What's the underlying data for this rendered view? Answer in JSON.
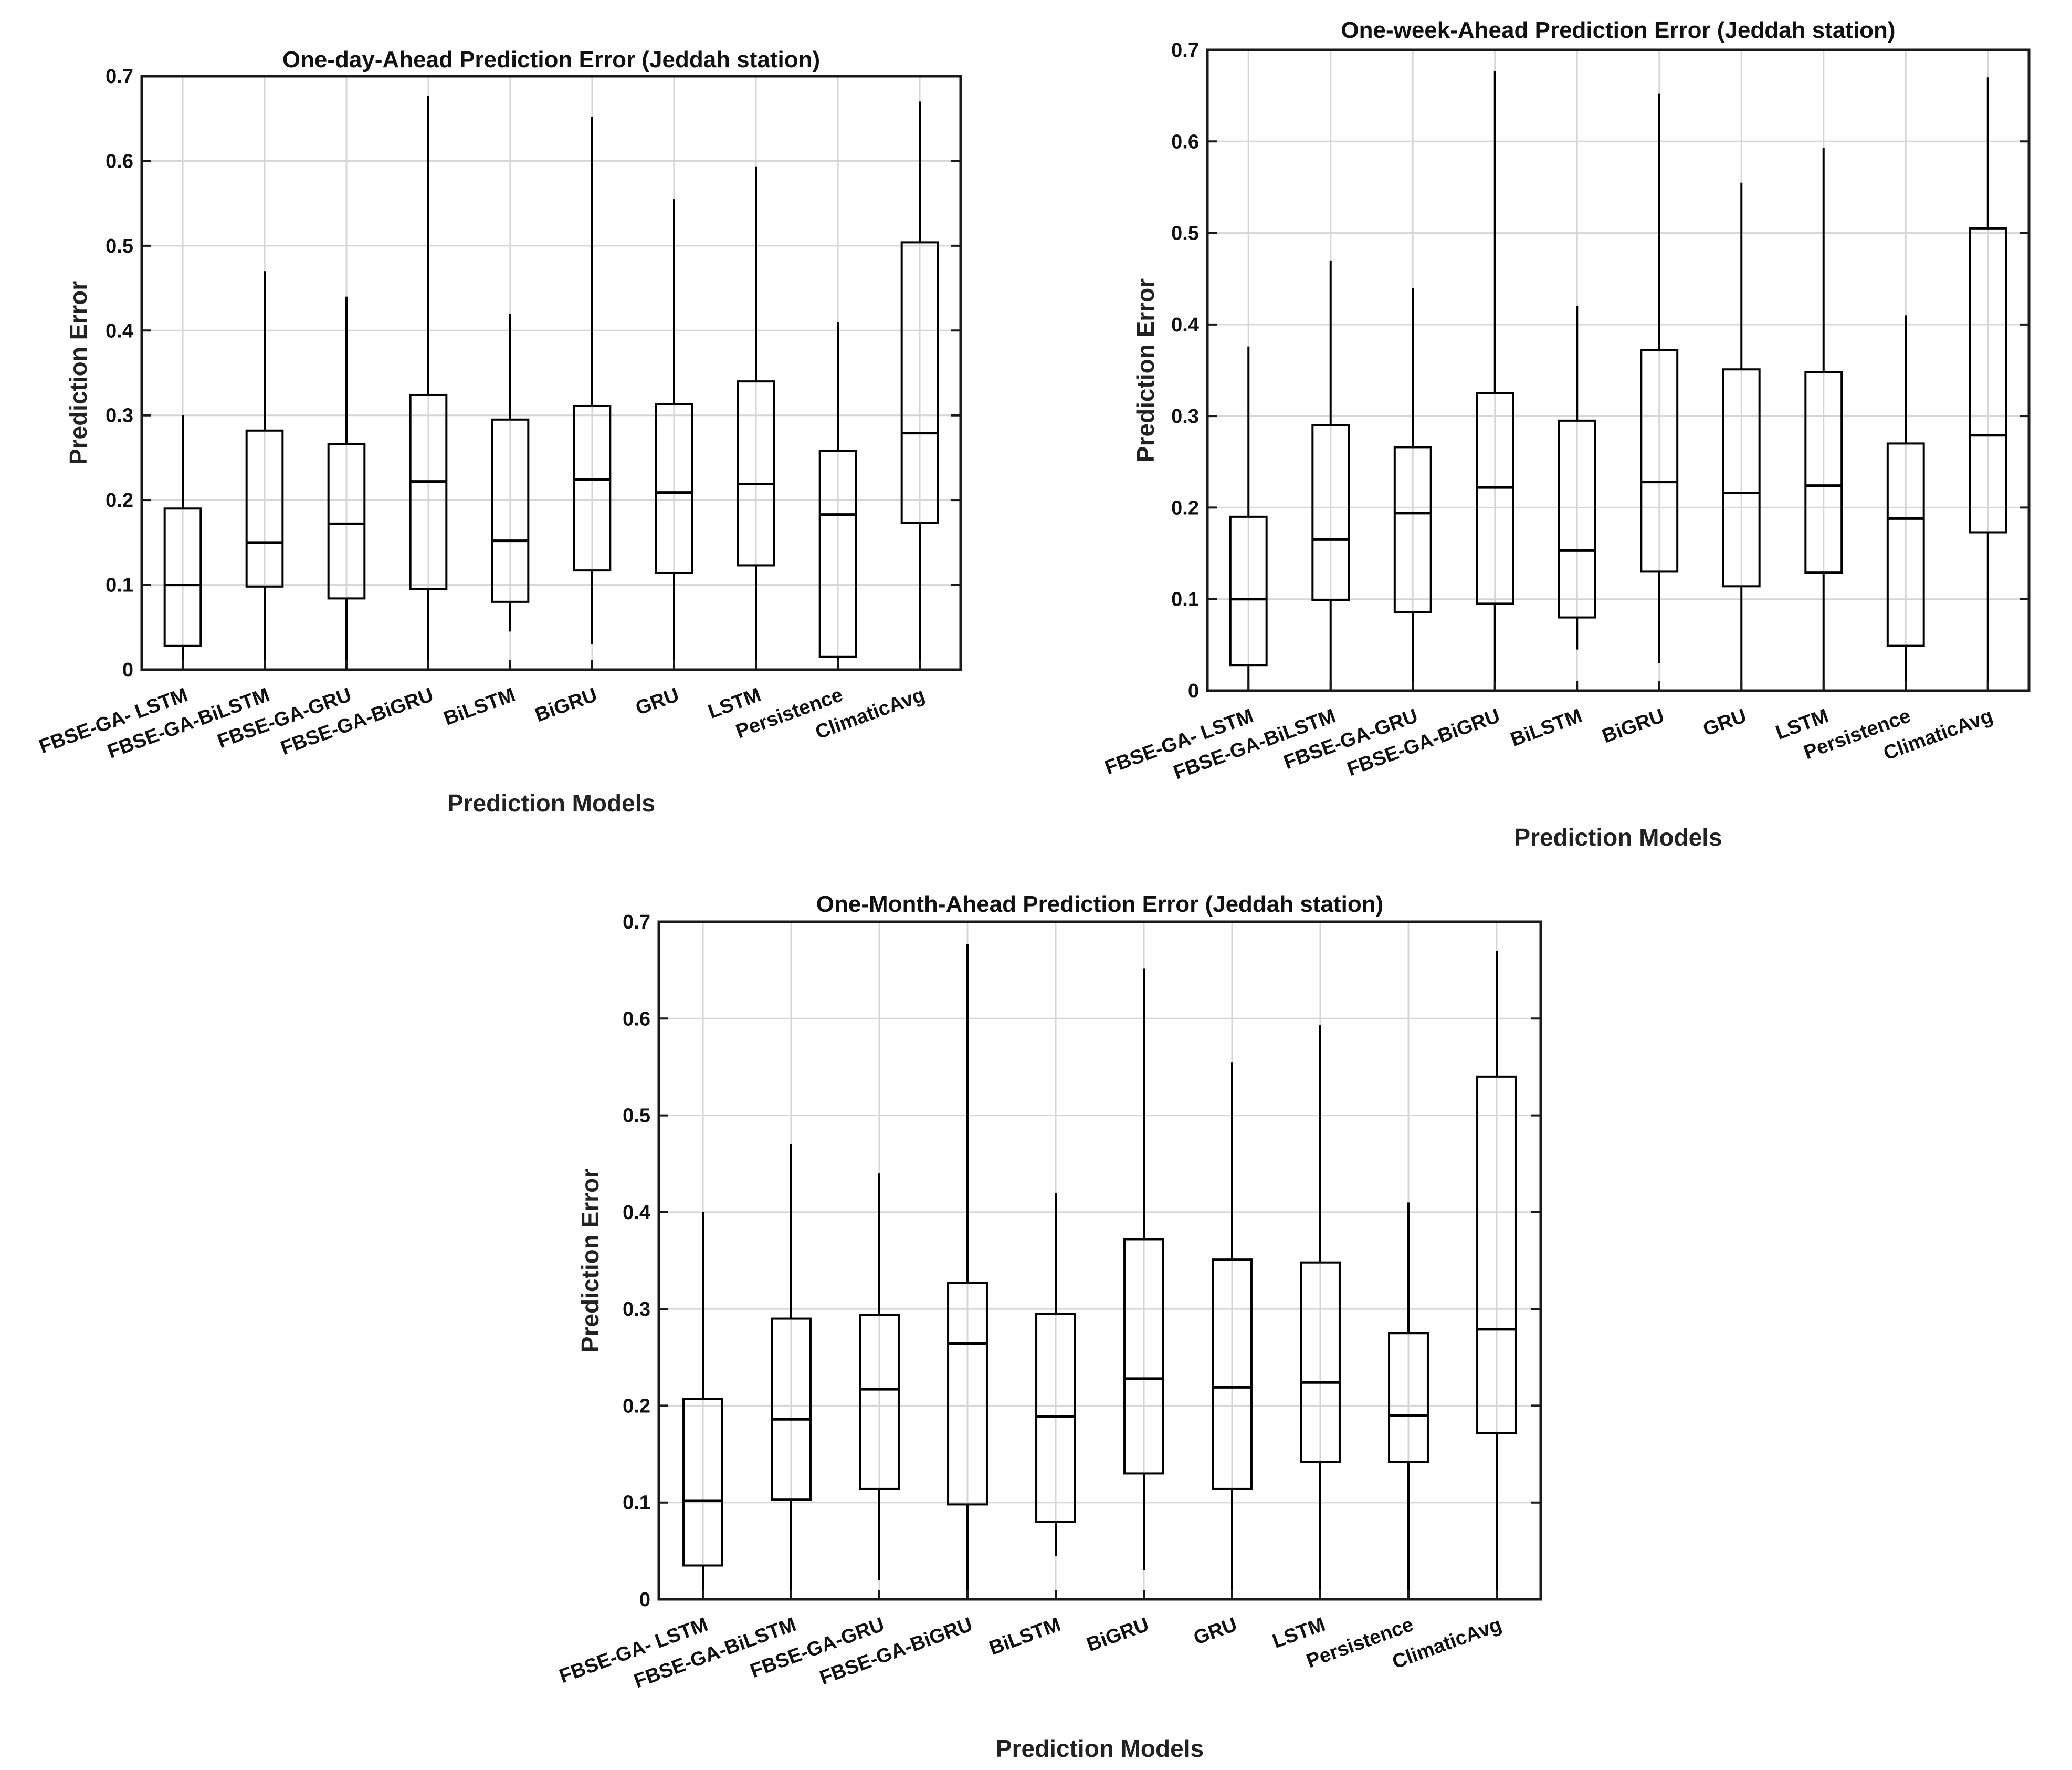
{
  "chart_data": [
    {
      "type": "boxplot",
      "title": "One-day-Ahead Prediction Error (Jeddah station)",
      "xlabel": "Prediction Models",
      "ylabel": "Prediction Error",
      "ylim": [
        0,
        0.7
      ],
      "yticks": [
        0,
        0.1,
        0.2,
        0.3,
        0.4,
        0.5,
        0.6,
        0.7
      ],
      "ytick_labels": [
        "0",
        "0.1",
        "0.2",
        "0.3",
        "0.4",
        "0.5",
        "0.6",
        "0.7"
      ],
      "grid": true,
      "categories": [
        "FBSE-GA- LSTM",
        "FBSE-GA-BiLSTM",
        "FBSE-GA-GRU",
        "FBSE-GA-BiGRU",
        "BiLSTM",
        "BiGRU",
        "GRU",
        "LSTM",
        "Persistence",
        "ClimaticAvg"
      ],
      "boxes": [
        {
          "min": 0.0,
          "q1": 0.028,
          "median": 0.1,
          "q3": 0.19,
          "max": 0.3
        },
        {
          "min": 0.0,
          "q1": 0.098,
          "median": 0.15,
          "q3": 0.282,
          "max": 0.47
        },
        {
          "min": 0.0,
          "q1": 0.084,
          "median": 0.172,
          "q3": 0.266,
          "max": 0.44
        },
        {
          "min": 0.0,
          "q1": 0.095,
          "median": 0.222,
          "q3": 0.324,
          "max": 0.677
        },
        {
          "min": 0.045,
          "q1": 0.08,
          "median": 0.152,
          "q3": 0.295,
          "max": 0.42
        },
        {
          "min": 0.03,
          "q1": 0.117,
          "median": 0.224,
          "q3": 0.311,
          "max": 0.652
        },
        {
          "min": 0.0,
          "q1": 0.114,
          "median": 0.209,
          "q3": 0.313,
          "max": 0.555
        },
        {
          "min": 0.0,
          "q1": 0.123,
          "median": 0.219,
          "q3": 0.34,
          "max": 0.593
        },
        {
          "min": 0.0,
          "q1": 0.015,
          "median": 0.183,
          "q3": 0.258,
          "max": 0.41
        },
        {
          "min": 0.0,
          "q1": 0.173,
          "median": 0.279,
          "q3": 0.504,
          "max": 0.67
        }
      ]
    },
    {
      "type": "boxplot",
      "title": "One-week-Ahead Prediction Error (Jeddah station)",
      "xlabel": "Prediction Models",
      "ylabel": "Prediction Error",
      "ylim": [
        0,
        0.7
      ],
      "yticks": [
        0,
        0.1,
        0.2,
        0.3,
        0.4,
        0.5,
        0.6,
        0.7
      ],
      "ytick_labels": [
        "0",
        "0.1",
        "0.2",
        "0.3",
        "0.4",
        "0.5",
        "0.6",
        "0.7"
      ],
      "grid": true,
      "categories": [
        "FBSE-GA- LSTM",
        "FBSE-GA-BiLSTM",
        "FBSE-GA-GRU",
        "FBSE-GA-BiGRU",
        "BiLSTM",
        "BiGRU",
        "GRU",
        "LSTM",
        "Persistence",
        "ClimaticAvg"
      ],
      "boxes": [
        {
          "min": 0.0,
          "q1": 0.028,
          "median": 0.1,
          "q3": 0.19,
          "max": 0.376
        },
        {
          "min": 0.0,
          "q1": 0.099,
          "median": 0.165,
          "q3": 0.29,
          "max": 0.47
        },
        {
          "min": 0.0,
          "q1": 0.086,
          "median": 0.194,
          "q3": 0.266,
          "max": 0.44
        },
        {
          "min": 0.0,
          "q1": 0.095,
          "median": 0.222,
          "q3": 0.325,
          "max": 0.677
        },
        {
          "min": 0.045,
          "q1": 0.08,
          "median": 0.153,
          "q3": 0.295,
          "max": 0.42
        },
        {
          "min": 0.03,
          "q1": 0.13,
          "median": 0.228,
          "q3": 0.372,
          "max": 0.652
        },
        {
          "min": 0.0,
          "q1": 0.114,
          "median": 0.216,
          "q3": 0.351,
          "max": 0.555
        },
        {
          "min": 0.0,
          "q1": 0.129,
          "median": 0.224,
          "q3": 0.348,
          "max": 0.593
        },
        {
          "min": 0.0,
          "q1": 0.049,
          "median": 0.188,
          "q3": 0.27,
          "max": 0.41
        },
        {
          "min": 0.0,
          "q1": 0.173,
          "median": 0.279,
          "q3": 0.505,
          "max": 0.67
        }
      ]
    },
    {
      "type": "boxplot",
      "title": "One-Month-Ahead Prediction Error (Jeddah station)",
      "xlabel": "Prediction Models",
      "ylabel": "Prediction Error",
      "ylim": [
        0,
        0.7
      ],
      "yticks": [
        0,
        0.1,
        0.2,
        0.3,
        0.4,
        0.5,
        0.6,
        0.7
      ],
      "ytick_labels": [
        "0",
        "0.1",
        "0.2",
        "0.3",
        "0.4",
        "0.5",
        "0.6",
        "0.7"
      ],
      "grid": true,
      "categories": [
        "FBSE-GA- LSTM",
        "FBSE-GA-BiLSTM",
        "FBSE-GA-GRU",
        "FBSE-GA-BiGRU",
        "BiLSTM",
        "BiGRU",
        "GRU",
        "LSTM",
        "Persistence",
        "ClimaticAvg"
      ],
      "boxes": [
        {
          "min": 0.0,
          "q1": 0.035,
          "median": 0.102,
          "q3": 0.207,
          "max": 0.4
        },
        {
          "min": 0.0,
          "q1": 0.103,
          "median": 0.186,
          "q3": 0.29,
          "max": 0.47
        },
        {
          "min": 0.02,
          "q1": 0.114,
          "median": 0.217,
          "q3": 0.294,
          "max": 0.44
        },
        {
          "min": 0.0,
          "q1": 0.098,
          "median": 0.264,
          "q3": 0.327,
          "max": 0.677
        },
        {
          "min": 0.045,
          "q1": 0.08,
          "median": 0.189,
          "q3": 0.295,
          "max": 0.42
        },
        {
          "min": 0.03,
          "q1": 0.13,
          "median": 0.228,
          "q3": 0.372,
          "max": 0.652
        },
        {
          "min": 0.0,
          "q1": 0.114,
          "median": 0.219,
          "q3": 0.351,
          "max": 0.555
        },
        {
          "min": 0.0,
          "q1": 0.142,
          "median": 0.224,
          "q3": 0.348,
          "max": 0.593
        },
        {
          "min": 0.0,
          "q1": 0.142,
          "median": 0.19,
          "q3": 0.275,
          "max": 0.41
        },
        {
          "min": 0.0,
          "q1": 0.172,
          "median": 0.279,
          "q3": 0.54,
          "max": 0.67
        }
      ]
    }
  ]
}
